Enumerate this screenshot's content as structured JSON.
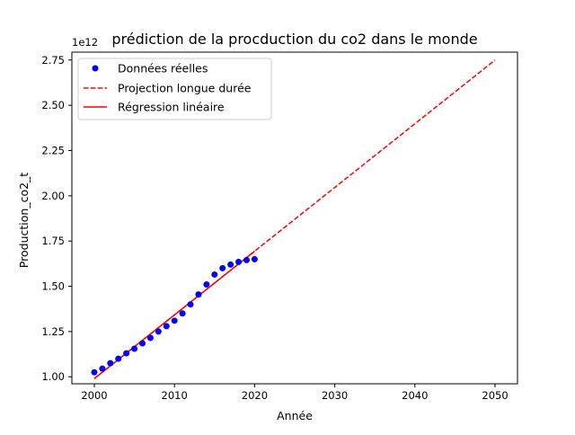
{
  "chart_data": {
    "type": "line",
    "title": "prédiction de la procduction du co2 dans le monde",
    "xlabel": "Année",
    "ylabel": "Production_co2_t",
    "y_offset_label": "1e12",
    "xlim": [
      1997.2,
      2052.8
    ],
    "ylim": [
      0.9615,
      2.7937
    ],
    "y_scale_factor": 1000000000000.0,
    "x_ticks": [
      2000,
      2010,
      2020,
      2030,
      2040,
      2050
    ],
    "x_tick_labels": [
      "2000",
      "2010",
      "2020",
      "2030",
      "2040",
      "2050"
    ],
    "y_ticks": [
      1.0,
      1.25,
      1.5,
      1.75,
      2.0,
      2.25,
      2.5,
      2.75
    ],
    "y_tick_labels": [
      "1.00",
      "1.25",
      "1.50",
      "1.75",
      "2.00",
      "2.25",
      "2.50",
      "2.75"
    ],
    "grid": false,
    "legend_position": "top-left",
    "series": [
      {
        "name": "Données réelles",
        "kind": "scatter",
        "color": "#0000ff",
        "x": [
          2000,
          2001,
          2002,
          2003,
          2004,
          2005,
          2006,
          2007,
          2008,
          2009,
          2010,
          2011,
          2012,
          2013,
          2014,
          2015,
          2016,
          2017,
          2018,
          2019,
          2020
        ],
        "y": [
          1.025,
          1.045,
          1.075,
          1.1,
          1.13,
          1.155,
          1.185,
          1.215,
          1.25,
          1.28,
          1.31,
          1.35,
          1.4,
          1.455,
          1.51,
          1.565,
          1.6,
          1.62,
          1.635,
          1.645,
          1.65
        ]
      },
      {
        "name": "Projection longue durée",
        "kind": "line",
        "style": "dashed",
        "color": "#ff0000",
        "x": [
          2000,
          2050
        ],
        "y": [
          0.99,
          2.75
        ]
      },
      {
        "name": "Régression linéaire",
        "kind": "line",
        "style": "solid",
        "color": "#ff0000",
        "x": [
          2000,
          2020
        ],
        "y": [
          0.99,
          1.694
        ]
      }
    ]
  }
}
